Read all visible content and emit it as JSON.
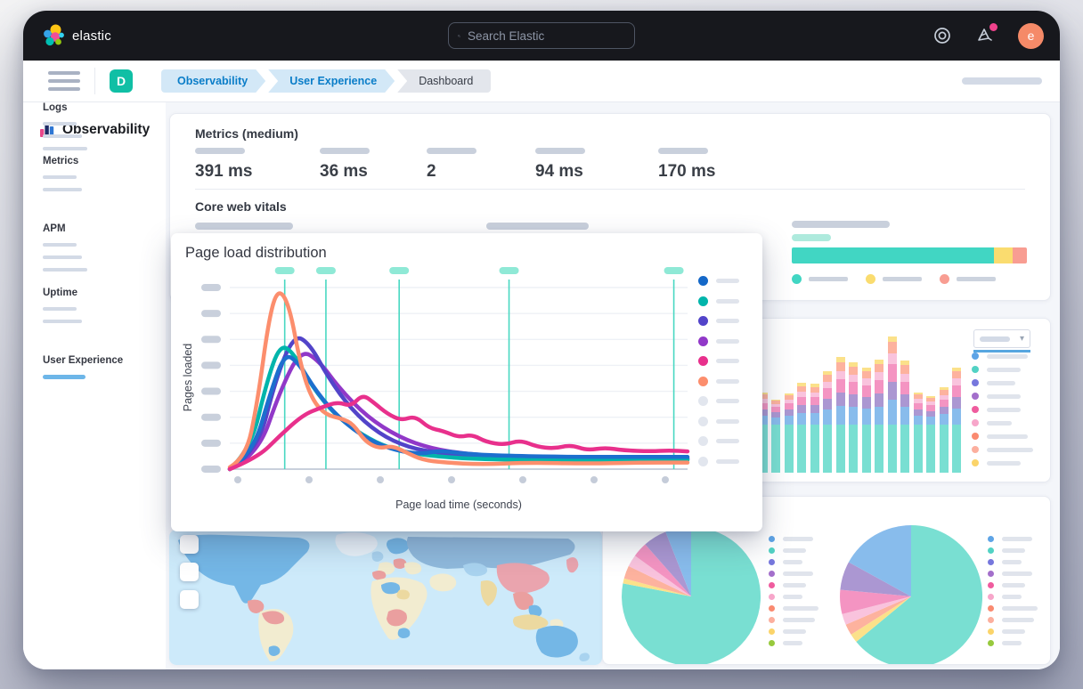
{
  "topbar": {
    "brand": "elastic",
    "search_placeholder": "Search Elastic",
    "avatar_initial": "e",
    "notification_color": "#f0428c"
  },
  "breadcrumbs": {
    "app_initial": "D",
    "items": [
      {
        "label": "Observability",
        "emphasis": true
      },
      {
        "label": "User Experience",
        "emphasis": true
      },
      {
        "label": "Dashboard",
        "emphasis": false
      }
    ]
  },
  "sidebar": {
    "title": "Observability",
    "active_color": "#6db6e8",
    "sections": [
      {
        "label": "Logs",
        "placeholder_lines": 3,
        "active": false
      },
      {
        "label": "Metrics",
        "placeholder_lines": 2,
        "active": false
      },
      {
        "label": "APM",
        "placeholder_lines": 3,
        "active": false
      },
      {
        "label": "Uptime",
        "placeholder_lines": 2,
        "active": false
      },
      {
        "label": "User Experience",
        "placeholder_lines": 1,
        "active": true
      }
    ]
  },
  "metrics_panel": {
    "title": "Metrics (medium)",
    "metrics": [
      {
        "value": "391 ms"
      },
      {
        "value": "36 ms"
      },
      {
        "value": "2"
      },
      {
        "value": "94 ms"
      },
      {
        "value": "170 ms"
      }
    ],
    "core_web_vitals": {
      "title": "Core web vitals",
      "bar_segments": [
        {
          "color": "#41d6c3",
          "pct": 86
        },
        {
          "color": "#fadc6f",
          "pct": 8
        },
        {
          "color": "#f89d92",
          "pct": 6
        }
      ],
      "legend_dot_colors": [
        "#41d6c3",
        "#fadc6f",
        "#f89d92"
      ]
    }
  },
  "chart_data": [
    {
      "id": "page-load-distribution",
      "type": "line",
      "title": "Page load distribution",
      "xlabel": "Page load time (seconds)",
      "ylabel": "Pages loaded",
      "x_tick_style": "placeholder-dots",
      "x_tick_count": 7,
      "y_tick_style": "placeholder-pills",
      "y_tick_count": 8,
      "grid": true,
      "legend_position": "right",
      "legend_dot_colors": [
        "#1468c8",
        "#00b5ab",
        "#5244c9",
        "#9138c8",
        "#e8308c",
        "#fc8e6d",
        "#e2e6ee",
        "#e2e6ee",
        "#e2e6ee",
        "#e2e6ee"
      ],
      "percentile_marker_positions": [
        0.12,
        0.21,
        0.37,
        0.61,
        0.97
      ],
      "percentile_marker_color": "#49d8c2",
      "series": [
        {
          "name": "purple",
          "color": "#9138c8",
          "points": [
            [
              0,
              0
            ],
            [
              0.06,
              0.07
            ],
            [
              0.11,
              0.42
            ],
            [
              0.155,
              0.64
            ],
            [
              0.195,
              0.58
            ],
            [
              0.24,
              0.43
            ],
            [
              0.3,
              0.28
            ],
            [
              0.37,
              0.17
            ],
            [
              0.44,
              0.11
            ],
            [
              0.52,
              0.08
            ],
            [
              0.62,
              0.065
            ],
            [
              0.78,
              0.06
            ],
            [
              1,
              0.055
            ]
          ]
        },
        {
          "name": "indigo",
          "color": "#5244c9",
          "points": [
            [
              0,
              0
            ],
            [
              0.06,
              0.09
            ],
            [
              0.1,
              0.48
            ],
            [
              0.14,
              0.72
            ],
            [
              0.175,
              0.67
            ],
            [
              0.215,
              0.49
            ],
            [
              0.265,
              0.32
            ],
            [
              0.325,
              0.19
            ],
            [
              0.39,
              0.115
            ],
            [
              0.46,
              0.085
            ],
            [
              0.56,
              0.065
            ],
            [
              0.7,
              0.055
            ],
            [
              0.85,
              0.055
            ],
            [
              1,
              0.055
            ]
          ]
        },
        {
          "name": "teal",
          "color": "#00b5ab",
          "points": [
            [
              0,
              0
            ],
            [
              0.045,
              0.1
            ],
            [
              0.08,
              0.46
            ],
            [
              0.11,
              0.67
            ],
            [
              0.14,
              0.62
            ],
            [
              0.18,
              0.44
            ],
            [
              0.23,
              0.29
            ],
            [
              0.29,
              0.18
            ],
            [
              0.35,
              0.11
            ],
            [
              0.42,
              0.075
            ],
            [
              0.52,
              0.055
            ],
            [
              0.65,
              0.05
            ],
            [
              0.8,
              0.05
            ],
            [
              1,
              0.05
            ]
          ]
        },
        {
          "name": "blue",
          "color": "#1d6fce",
          "points": [
            [
              0,
              0
            ],
            [
              0.05,
              0.08
            ],
            [
              0.09,
              0.42
            ],
            [
              0.12,
              0.62
            ],
            [
              0.15,
              0.57
            ],
            [
              0.19,
              0.41
            ],
            [
              0.24,
              0.27
            ],
            [
              0.3,
              0.16
            ],
            [
              0.36,
              0.1
            ],
            [
              0.42,
              0.08
            ],
            [
              0.46,
              0.1
            ],
            [
              0.52,
              0.08
            ],
            [
              0.62,
              0.07
            ],
            [
              0.75,
              0.065
            ],
            [
              0.88,
              0.065
            ],
            [
              1,
              0.065
            ]
          ]
        },
        {
          "name": "orange",
          "color": "#fc8e6d",
          "points": [
            [
              0,
              0.01
            ],
            [
              0.035,
              0.06
            ],
            [
              0.06,
              0.35
            ],
            [
              0.085,
              0.8
            ],
            [
              0.105,
              0.97
            ],
            [
              0.13,
              0.88
            ],
            [
              0.155,
              0.55
            ],
            [
              0.18,
              0.37
            ],
            [
              0.21,
              0.29
            ],
            [
              0.245,
              0.27
            ],
            [
              0.27,
              0.24
            ],
            [
              0.295,
              0.15
            ],
            [
              0.325,
              0.11
            ],
            [
              0.355,
              0.125
            ],
            [
              0.385,
              0.09
            ],
            [
              0.42,
              0.05
            ],
            [
              0.47,
              0.035
            ],
            [
              0.55,
              0.025
            ],
            [
              0.65,
              0.035
            ],
            [
              0.78,
              0.03
            ],
            [
              0.9,
              0.035
            ],
            [
              1,
              0.035
            ]
          ]
        },
        {
          "name": "magenta",
          "color": "#e8308c",
          "points": [
            [
              0,
              0
            ],
            [
              0.06,
              0.06
            ],
            [
              0.11,
              0.18
            ],
            [
              0.16,
              0.29
            ],
            [
              0.2,
              0.33
            ],
            [
              0.235,
              0.36
            ],
            [
              0.265,
              0.335
            ],
            [
              0.29,
              0.4
            ],
            [
              0.315,
              0.355
            ],
            [
              0.345,
              0.295
            ],
            [
              0.375,
              0.26
            ],
            [
              0.405,
              0.285
            ],
            [
              0.435,
              0.22
            ],
            [
              0.465,
              0.205
            ],
            [
              0.5,
              0.17
            ],
            [
              0.53,
              0.185
            ],
            [
              0.56,
              0.145
            ],
            [
              0.6,
              0.13
            ],
            [
              0.635,
              0.155
            ],
            [
              0.67,
              0.12
            ],
            [
              0.71,
              0.11
            ],
            [
              0.745,
              0.13
            ],
            [
              0.78,
              0.1
            ],
            [
              0.82,
              0.115
            ],
            [
              0.86,
              0.1
            ],
            [
              0.92,
              0.095
            ],
            [
              0.96,
              0.1
            ],
            [
              1,
              0.095
            ]
          ]
        }
      ]
    },
    {
      "id": "page-views-stacked-bars",
      "type": "bar",
      "stacked": true,
      "has_select_control": true,
      "legend_position": "right",
      "segment_colors": [
        "#79dfd2",
        "#88bcec",
        "#ab97d2",
        "#f494c2",
        "#f9c3dd",
        "#fdb29e",
        "#fbe18a"
      ],
      "legend_dot_colors": [
        "#5ea4e6",
        "#52d2c4",
        "#7677dd",
        "#a36fcb",
        "#ef5c9e",
        "#f7a6ca",
        "#fa8a70",
        "#fcaf9e",
        "#fbd46a"
      ],
      "bars": [
        [
          54,
          10,
          7,
          7,
          4,
          4,
          2
        ],
        [
          54,
          10,
          7,
          7,
          5,
          5,
          2
        ],
        [
          54,
          8,
          6,
          6,
          3,
          4,
          1
        ],
        [
          54,
          10,
          7,
          7,
          4,
          5,
          2
        ],
        [
          54,
          13,
          9,
          9,
          6,
          6,
          4
        ],
        [
          54,
          13,
          9,
          9,
          5,
          6,
          4
        ],
        [
          54,
          17,
          12,
          12,
          7,
          8,
          4
        ],
        [
          54,
          21,
          15,
          15,
          9,
          10,
          6
        ],
        [
          54,
          20,
          14,
          14,
          8,
          9,
          5
        ],
        [
          54,
          18,
          13,
          13,
          8,
          8,
          4
        ],
        [
          54,
          20,
          15,
          15,
          9,
          9,
          5
        ],
        [
          54,
          28,
          20,
          20,
          12,
          13,
          6
        ],
        [
          54,
          20,
          14,
          14,
          9,
          10,
          5
        ],
        [
          54,
          10,
          7,
          7,
          5,
          5,
          2
        ],
        [
          54,
          9,
          6,
          7,
          4,
          4,
          2
        ],
        [
          54,
          12,
          8,
          8,
          5,
          6,
          3
        ],
        [
          54,
          18,
          13,
          13,
          8,
          8,
          4
        ]
      ]
    },
    {
      "id": "pie-left",
      "type": "pie",
      "legend_position": "right",
      "legend_dot_colors": [
        "#5ea4e6",
        "#52d2c4",
        "#7677dd",
        "#a36fcb",
        "#ef5c9e",
        "#f7a6ca",
        "#fa8a70",
        "#fcaf9e",
        "#fbd46a",
        "#97c93d"
      ],
      "slices": [
        {
          "color": "#79dfd2",
          "fraction": 0.78
        },
        {
          "color": "#fbe18a",
          "fraction": 0.012
        },
        {
          "color": "#fdb29e",
          "fraction": 0.03
        },
        {
          "color": "#f9c3dd",
          "fraction": 0.028
        },
        {
          "color": "#f494c2",
          "fraction": 0.035
        },
        {
          "color": "#ab97d2",
          "fraction": 0.055
        },
        {
          "color": "#88bcec",
          "fraction": 0.06
        }
      ]
    },
    {
      "id": "pie-right",
      "type": "pie",
      "legend_position": "right",
      "legend_dot_colors": [
        "#5ea4e6",
        "#52d2c4",
        "#7677dd",
        "#a36fcb",
        "#ef5c9e",
        "#f7a6ca",
        "#fa8a70",
        "#fcaf9e",
        "#fbd46a",
        "#97c93d"
      ],
      "slices": [
        {
          "color": "#79dfd2",
          "fraction": 0.64
        },
        {
          "color": "#fbe18a",
          "fraction": 0.02
        },
        {
          "color": "#fdb29e",
          "fraction": 0.025
        },
        {
          "color": "#f9c3dd",
          "fraction": 0.025
        },
        {
          "color": "#f494c2",
          "fraction": 0.055
        },
        {
          "color": "#ab97d2",
          "fraction": 0.065
        },
        {
          "color": "#88bcec",
          "fraction": 0.17
        }
      ]
    }
  ],
  "map_panel": {
    "type": "choropleth-world-map",
    "ocean_color": "#cdeafa",
    "country_colors": [
      "#74b7e6",
      "#a9d3ef",
      "#f2ecd0",
      "#ea9f9f",
      "#ecd9a0"
    ],
    "zoom_button_count": 3
  }
}
